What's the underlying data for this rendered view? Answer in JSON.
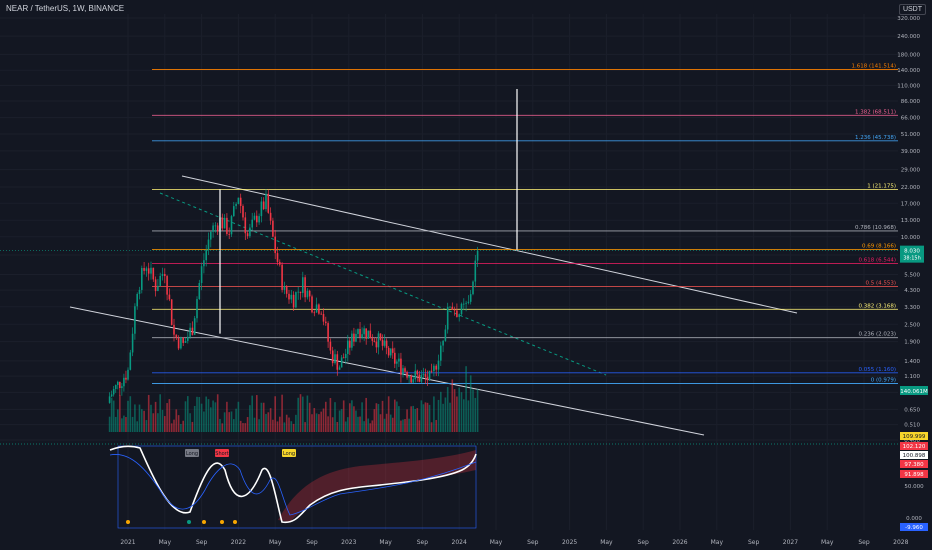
{
  "header": {
    "title": "NEAR / TetherUS, 1W, BINANCE",
    "currency": "USDT"
  },
  "price_axis": {
    "ticks": [
      "320.000",
      "240.000",
      "180.000",
      "140.000",
      "110.000",
      "86.000",
      "66.000",
      "51.000",
      "39.000",
      "29.000",
      "22.000",
      "17.000",
      "13.000",
      "10.000",
      "7.500",
      "5.500",
      "4.300",
      "3.300",
      "2.500",
      "1.900",
      "1.400",
      "1.100",
      "0.850",
      "0.650",
      "0.510",
      "0.400"
    ],
    "price_badge": {
      "value": "8.030",
      "sub": "38:15h",
      "color": "#089981"
    },
    "volume_badge": {
      "value": "140.061M",
      "color": "#089981"
    }
  },
  "osc_axis": {
    "ticks": [
      "109.999",
      "102.120",
      "100.898",
      "97.380",
      "91.898",
      "50.000",
      "0.000",
      "-9.960"
    ],
    "colors": [
      "#f7d62b",
      "#f23645",
      "#ffffff",
      "#f23645",
      "#f23645",
      "#d1d4dc",
      "#d1d4dc",
      "#2962ff"
    ]
  },
  "time_axis": {
    "labels": [
      "2021",
      "May",
      "Sep",
      "2022",
      "May",
      "Sep",
      "2023",
      "May",
      "Sep",
      "2024",
      "May",
      "Sep",
      "2025",
      "May",
      "Sep",
      "2026",
      "May",
      "Sep",
      "2027",
      "May",
      "Sep",
      "2028"
    ]
  },
  "fib_levels": [
    {
      "label": "1.618 (141.514)",
      "color": "#f57c00"
    },
    {
      "label": "1.382 (68.511)",
      "color": "#f06292"
    },
    {
      "label": "1.236 (45.738)",
      "color": "#42a5f5"
    },
    {
      "label": "1 (21.175)",
      "color": "#fff176"
    },
    {
      "label": "0.786 (10.968)",
      "color": "#b2b5be"
    },
    {
      "label": "0.69 (8.166)",
      "color": "#ff9800"
    },
    {
      "label": "0.618 (6.544)",
      "color": "#e91e63"
    },
    {
      "label": "0.5 (4.553)",
      "color": "#ef5350"
    },
    {
      "label": "0.382 (3.168)",
      "color": "#fff176"
    },
    {
      "label": "0.236 (2.023)",
      "color": "#b2b5be"
    },
    {
      "label": "0.055 (1.160)",
      "color": "#2962ff"
    },
    {
      "label": "0 (0.979)",
      "color": "#42a5f5"
    }
  ],
  "oscillator": {
    "tags": [
      {
        "text": "Long",
        "color": "#787b86"
      },
      {
        "text": "Short",
        "color": "#f23645"
      },
      {
        "text": "Long",
        "color": "#f7d62b"
      }
    ]
  },
  "colors": {
    "up": "#089981",
    "down": "#f23645",
    "bg": "#131722",
    "grid": "#1e222d"
  },
  "chart_data": {
    "type": "candlestick",
    "symbol": "NEAR / TetherUS",
    "interval": "1W",
    "exchange": "BINANCE",
    "y_scale": "log",
    "ylim": [
      0.4,
      320
    ],
    "price_path_usdt": [
      [
        "2020-11",
        0.8
      ],
      [
        "2021-01",
        1.2
      ],
      [
        "2021-02",
        4.5
      ],
      [
        "2021-03",
        6.5
      ],
      [
        "2021-04",
        4.6
      ],
      [
        "2021-05",
        6.0
      ],
      [
        "2021-06",
        2.1
      ],
      [
        "2021-07",
        1.8
      ],
      [
        "2021-08",
        2.4
      ],
      [
        "2021-09",
        6.0
      ],
      [
        "2021-10",
        11.0
      ],
      [
        "2021-11",
        13.0
      ],
      [
        "2021-12",
        11.0
      ],
      [
        "2022-01",
        19.5
      ],
      [
        "2022-02",
        10.0
      ],
      [
        "2022-03",
        14.0
      ],
      [
        "2022-04",
        17.5
      ],
      [
        "2022-05",
        8.0
      ],
      [
        "2022-06",
        4.2
      ],
      [
        "2022-07",
        3.8
      ],
      [
        "2022-08",
        4.8
      ],
      [
        "2022-09",
        3.5
      ],
      [
        "2022-10",
        3.3
      ],
      [
        "2022-11",
        1.6
      ],
      [
        "2022-12",
        1.3
      ],
      [
        "2023-02",
        2.4
      ],
      [
        "2023-04",
        2.0
      ],
      [
        "2023-06",
        1.4
      ],
      [
        "2023-08",
        1.1
      ],
      [
        "2023-10",
        1.05
      ],
      [
        "2023-11",
        1.8
      ],
      [
        "2023-12",
        3.5
      ],
      [
        "2024-01",
        3.0
      ],
      [
        "2024-02",
        3.4
      ],
      [
        "2024-03",
        8.03
      ]
    ],
    "last_price": 8.03,
    "last_volume": "140.061M",
    "fibonacci": [
      {
        "ratio": 1.618,
        "price": 141.514
      },
      {
        "ratio": 1.382,
        "price": 68.511
      },
      {
        "ratio": 1.236,
        "price": 45.738
      },
      {
        "ratio": 1,
        "price": 21.175
      },
      {
        "ratio": 0.786,
        "price": 10.968
      },
      {
        "ratio": 0.69,
        "price": 8.166
      },
      {
        "ratio": 0.618,
        "price": 6.544
      },
      {
        "ratio": 0.5,
        "price": 4.553
      },
      {
        "ratio": 0.382,
        "price": 3.168
      },
      {
        "ratio": 0.236,
        "price": 2.023
      },
      {
        "ratio": 0.055,
        "price": 1.16
      },
      {
        "ratio": 0,
        "price": 0.979
      }
    ]
  }
}
